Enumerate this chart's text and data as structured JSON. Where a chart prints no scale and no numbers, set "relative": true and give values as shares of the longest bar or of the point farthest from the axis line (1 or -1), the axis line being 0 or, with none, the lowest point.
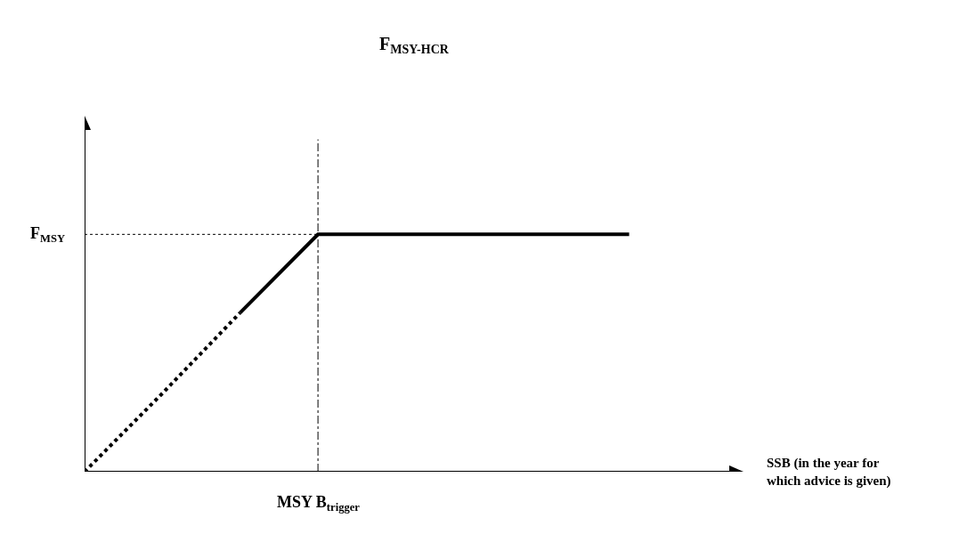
{
  "chart_data": {
    "type": "line",
    "title": "F$_{MSY-HCR}$",
    "relative": true,
    "categories": [
      null,
      null,
      null,
      null,
      null,
      null,
      null,
      null
    ],
    "series": [
      {
        "color": "#000000",
        "line_style": "dotted",
        "values": [
          0,
          0.33,
          0.67,
          null,
          null,
          null,
          null,
          null
        ]
      },
      {
        "color": "#000000",
        "line_style": "solid",
        "values": [
          null,
          null,
          0.67,
          1,
          1,
          1,
          1,
          1
        ]
      }
    ],
    "ref_lines": [
      {
        "axis": "y",
        "value": 1,
        "label": "F$_{MSY}$",
        "color": "#000000",
        "line_style": "dotted"
      }
    ],
    "annotations": [
      "MSY B$_{trigger}$",
      "SSB (in the year for\nwhich advice is given)"
    ],
    "marker": "none"
  }
}
